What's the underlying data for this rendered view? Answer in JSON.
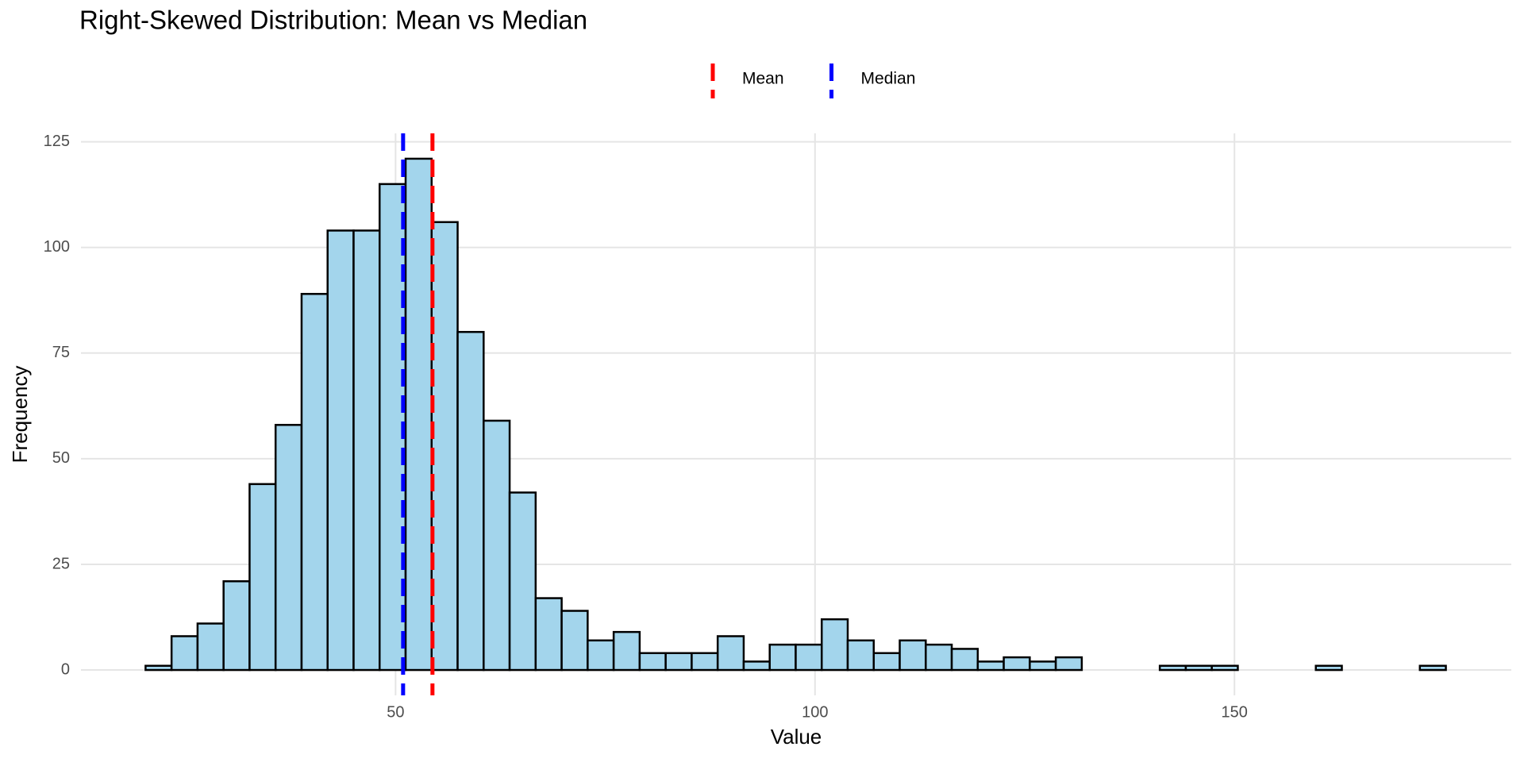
{
  "chart_data": {
    "type": "histogram",
    "title": "Right-Skewed Distribution: Mean vs Median",
    "x_label": "Value",
    "y_label": "Frequency",
    "bins": [
      20.2,
      23.3,
      26.4,
      29.5,
      32.6,
      35.7,
      38.8,
      41.9,
      45.0,
      48.1,
      51.2,
      54.3,
      57.4,
      60.5,
      63.6,
      66.7,
      69.8,
      72.9,
      76.0,
      79.1,
      82.2,
      85.3,
      88.4,
      91.5,
      94.6,
      97.7,
      100.8,
      103.9,
      107.0,
      110.1,
      113.2,
      116.3,
      119.4,
      122.5,
      125.6,
      128.7,
      131.8,
      134.9,
      138.0,
      141.1,
      144.2,
      147.3,
      150.4,
      153.5,
      156.6,
      159.7,
      162.8,
      165.9,
      169.0,
      172.1,
      175.2
    ],
    "values": [
      1,
      8,
      11,
      21,
      44,
      58,
      89,
      104,
      104,
      115,
      121,
      106,
      80,
      59,
      42,
      17,
      14,
      7,
      9,
      4,
      4,
      4,
      8,
      2,
      6,
      6,
      12,
      7,
      4,
      7,
      6,
      5,
      2,
      3,
      2,
      3,
      0,
      0,
      0,
      1,
      1,
      1,
      0,
      0,
      0,
      1,
      0,
      0,
      0,
      1
    ],
    "color": "#a3d5ec",
    "edge_color": "#000000",
    "lines": [
      {
        "name": "Mean",
        "value": 54.4,
        "color": "#ff0000"
      },
      {
        "name": "Median",
        "value": 50.9,
        "color": "#0000ff"
      }
    ],
    "legend": "top",
    "xlim": [
      12.5,
      183
    ],
    "xticks": [
      50,
      100,
      150
    ],
    "ylim": [
      -6,
      127
    ],
    "yticks": [
      0,
      25,
      50,
      75,
      100,
      125
    ],
    "grid": true
  }
}
